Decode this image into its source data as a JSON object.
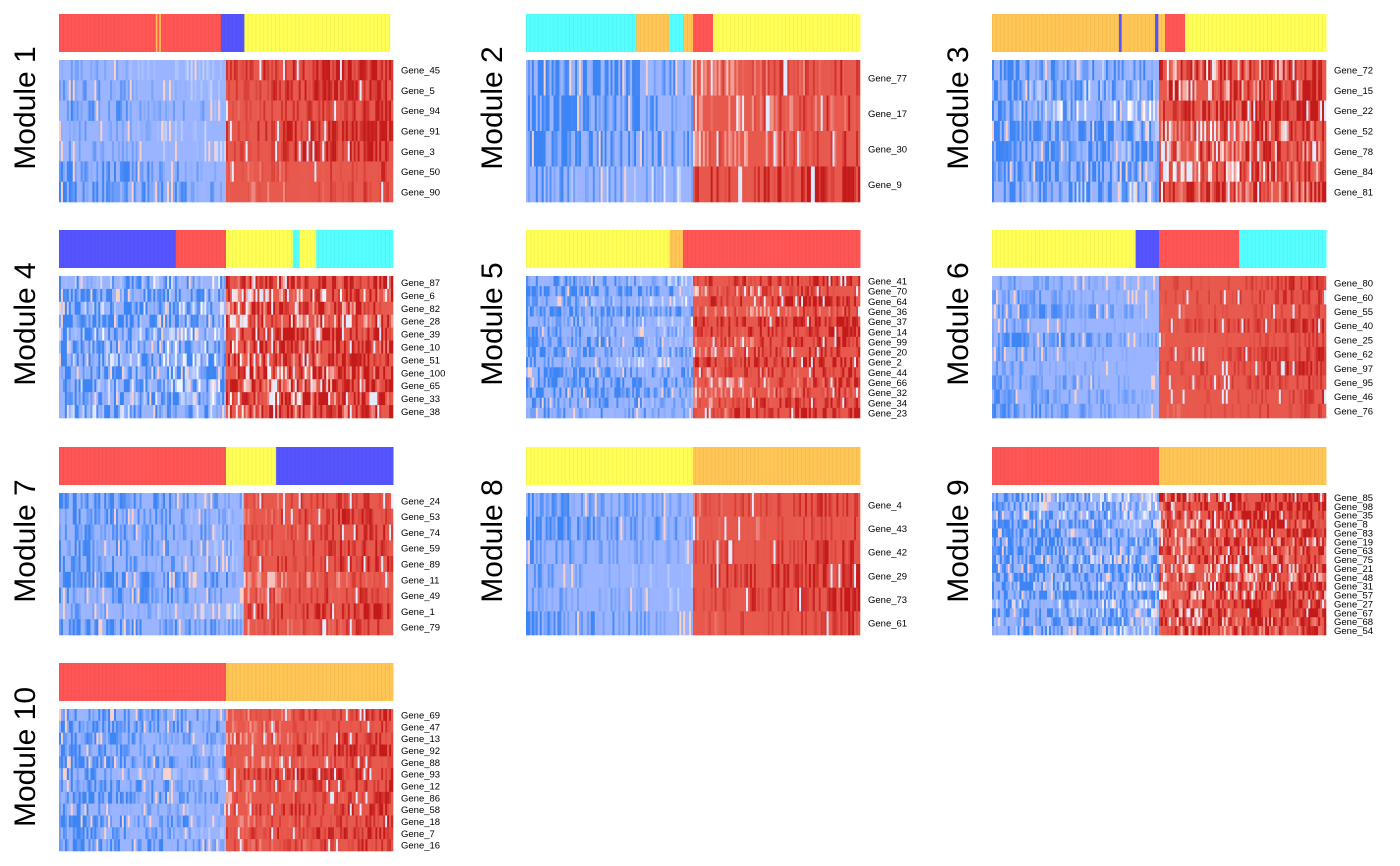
{
  "palette": {
    "annotation_colors": {
      "red": "#FF5555",
      "blue": "#5555FF",
      "yellow": "#FFFF55",
      "cyan": "#55FFFF",
      "orange": "#FFC555"
    },
    "heat_low": "#9AB4FF",
    "heat_deep_low": "#3D85F5",
    "heat_mid": "#FFFFFF",
    "heat_high": "#E8594D",
    "heat_deep_high": "#C41A1A"
  },
  "chart_data": [
    {
      "type": "heatmap",
      "title": "Module 1",
      "annotation_bar": [
        [
          "red",
          0.29
        ],
        [
          "orange",
          0.005
        ],
        [
          "red",
          0.005
        ],
        [
          "orange",
          0.005
        ],
        [
          "red",
          0.18
        ],
        [
          "blue",
          0.07
        ],
        [
          "yellow",
          0.435
        ]
      ],
      "genes": [
        "Gene_45",
        "Gene_5",
        "Gene_94",
        "Gene_91",
        "Gene_3",
        "Gene_50",
        "Gene_90"
      ],
      "split": 0.5,
      "noise": 0.25
    },
    {
      "type": "heatmap",
      "title": "Module 2",
      "annotation_bar": [
        [
          "cyan",
          0.33
        ],
        [
          "orange",
          0.1
        ],
        [
          "cyan",
          0.04
        ],
        [
          "orange",
          0.03
        ],
        [
          "red",
          0.06
        ],
        [
          "yellow",
          0.44
        ]
      ],
      "genes": [
        "Gene_77",
        "Gene_17",
        "Gene_30",
        "Gene_9"
      ],
      "split": 0.5,
      "noise": 0.35
    },
    {
      "type": "heatmap",
      "title": "Module 3",
      "annotation_bar": [
        [
          "orange",
          0.38
        ],
        [
          "blue",
          0.008
        ],
        [
          "orange",
          0.1
        ],
        [
          "blue",
          0.01
        ],
        [
          "orange",
          0.02
        ],
        [
          "red",
          0.06
        ],
        [
          "yellow",
          0.422
        ]
      ],
      "genes": [
        "Gene_72",
        "Gene_15",
        "Gene_22",
        "Gene_52",
        "Gene_78",
        "Gene_84",
        "Gene_81"
      ],
      "split": 0.5,
      "noise": 0.5
    },
    {
      "type": "heatmap",
      "title": "Module 4",
      "annotation_bar": [
        [
          "blue",
          0.35
        ],
        [
          "red",
          0.15
        ],
        [
          "yellow",
          0.2
        ],
        [
          "cyan",
          0.02
        ],
        [
          "yellow",
          0.05
        ],
        [
          "cyan",
          0.23
        ]
      ],
      "genes": [
        "Gene_87",
        "Gene_6",
        "Gene_82",
        "Gene_28",
        "Gene_39",
        "Gene_10",
        "Gene_51",
        "Gene_100",
        "Gene_65",
        "Gene_33",
        "Gene_38"
      ],
      "split": 0.5,
      "noise": 0.55
    },
    {
      "type": "heatmap",
      "title": "Module 5",
      "annotation_bar": [
        [
          "yellow",
          0.43
        ],
        [
          "orange",
          0.04
        ],
        [
          "red",
          0.53
        ]
      ],
      "genes": [
        "Gene_41",
        "Gene_70",
        "Gene_64",
        "Gene_36",
        "Gene_37",
        "Gene_14",
        "Gene_99",
        "Gene_20",
        "Gene_2",
        "Gene_44",
        "Gene_66",
        "Gene_32",
        "Gene_34",
        "Gene_23"
      ],
      "split": 0.5,
      "noise": 0.35
    },
    {
      "type": "heatmap",
      "title": "Module 6",
      "annotation_bar": [
        [
          "yellow",
          0.43
        ],
        [
          "blue",
          0.07
        ],
        [
          "red",
          0.24
        ],
        [
          "cyan",
          0.26
        ]
      ],
      "genes": [
        "Gene_80",
        "Gene_60",
        "Gene_55",
        "Gene_40",
        "Gene_25",
        "Gene_62",
        "Gene_97",
        "Gene_95",
        "Gene_46",
        "Gene_76"
      ],
      "split": 0.5,
      "noise": 0.2
    },
    {
      "type": "heatmap",
      "title": "Module 7",
      "annotation_bar": [
        [
          "red",
          0.5
        ],
        [
          "yellow",
          0.15
        ],
        [
          "blue",
          0.35
        ]
      ],
      "genes": [
        "Gene_24",
        "Gene_53",
        "Gene_74",
        "Gene_59",
        "Gene_89",
        "Gene_11",
        "Gene_49",
        "Gene_1",
        "Gene_79"
      ],
      "split": 0.55,
      "noise": 0.3
    },
    {
      "type": "heatmap",
      "title": "Module 8",
      "annotation_bar": [
        [
          "yellow",
          0.5
        ],
        [
          "orange",
          0.5
        ]
      ],
      "genes": [
        "Gene_4",
        "Gene_43",
        "Gene_42",
        "Gene_29",
        "Gene_73",
        "Gene_61"
      ],
      "split": 0.5,
      "noise": 0.25
    },
    {
      "type": "heatmap",
      "title": "Module 9",
      "annotation_bar": [
        [
          "red",
          0.5
        ],
        [
          "orange",
          0.5
        ]
      ],
      "genes": [
        "Gene_85",
        "Gene_98",
        "Gene_35",
        "Gene_8",
        "Gene_83",
        "Gene_19",
        "Gene_63",
        "Gene_75",
        "Gene_21",
        "Gene_48",
        "Gene_31",
        "Gene_57",
        "Gene_27",
        "Gene_67",
        "Gene_68",
        "Gene_54"
      ],
      "split": 0.5,
      "noise": 0.5
    },
    {
      "type": "heatmap",
      "title": "Module 10",
      "annotation_bar": [
        [
          "red",
          0.5
        ],
        [
          "orange",
          0.5
        ]
      ],
      "genes": [
        "Gene_69",
        "Gene_47",
        "Gene_13",
        "Gene_92",
        "Gene_88",
        "Gene_93",
        "Gene_12",
        "Gene_86",
        "Gene_58",
        "Gene_18",
        "Gene_7",
        "Gene_16"
      ],
      "split": 0.5,
      "noise": 0.3
    }
  ]
}
